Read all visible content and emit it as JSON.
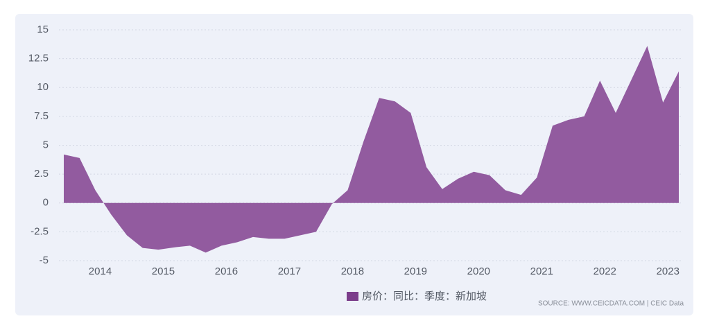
{
  "chart_data": {
    "type": "area",
    "categories": [
      null,
      null,
      "2014",
      null,
      null,
      null,
      "2015",
      null,
      null,
      null,
      "2016",
      null,
      null,
      null,
      "2017",
      null,
      null,
      null,
      "2018",
      null,
      null,
      null,
      "2019",
      null,
      null,
      null,
      "2020",
      null,
      null,
      null,
      "2021",
      null,
      null,
      null,
      "2022",
      null,
      null,
      null,
      "2023",
      null
    ],
    "series": [
      {
        "name": "房价：同比：季度：新加坡",
        "color": "#925b9f",
        "values": [
          4.2,
          3.9,
          1.1,
          -1,
          -2.8,
          -3.9,
          -4.05,
          -3.85,
          -3.7,
          -4.3,
          -3.7,
          -3.4,
          -2.95,
          -3.1,
          -3.1,
          -2.8,
          -2.5,
          -0.1,
          1.1,
          5.3,
          9.1,
          8.8,
          7.8,
          3.1,
          1.2,
          2.1,
          2.7,
          2.4,
          1.1,
          0.7,
          2.2,
          6.7,
          7.2,
          7.5,
          10.6,
          7.8,
          10.7,
          13.6,
          8.7,
          11.4
        ]
      }
    ],
    "ylim": [
      -5,
      15
    ],
    "yticks": [
      -5,
      -2.5,
      0,
      2.5,
      5,
      7.5,
      10,
      12.5,
      15
    ],
    "grid": true,
    "legend": "bottom",
    "annotations": [
      "SOURCE: WWW.CEICDATA.COM | CEIC Data"
    ]
  }
}
